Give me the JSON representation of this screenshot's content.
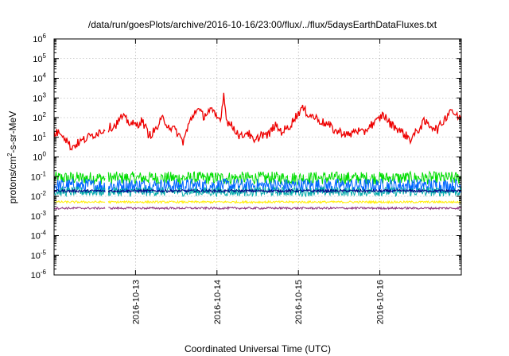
{
  "chart_data": {
    "type": "line",
    "title": "/data/run/goesPlots/archive/2016-10-16/23:00/flux/../flux/5daysEarthDataFluxes.txt",
    "xlabel": "Coordinated Universal Time (UTC)",
    "ylabel": {
      "base": "protons/cm",
      "sup": "2",
      "rest": "-s-sr-MeV"
    },
    "yscale": "log",
    "ylim_exponents": [
      -6,
      6
    ],
    "y_tick_labels": [
      {
        "base": "10",
        "exp": "6",
        "value_exp": 6
      },
      {
        "base": "10",
        "exp": "5",
        "value_exp": 5
      },
      {
        "base": "10",
        "exp": "4",
        "value_exp": 4
      },
      {
        "base": "10",
        "exp": "3",
        "value_exp": 3
      },
      {
        "base": "10",
        "exp": "2",
        "value_exp": 2
      },
      {
        "base": "10",
        "exp": "1",
        "value_exp": 1
      },
      {
        "base": "10",
        "exp": "0",
        "value_exp": 0
      },
      {
        "base": "10",
        "exp": "-1",
        "value_exp": -1
      },
      {
        "base": "10",
        "exp": "-2",
        "value_exp": -2
      },
      {
        "base": "10",
        "exp": "-3",
        "value_exp": -3
      },
      {
        "base": "10",
        "exp": "-4",
        "value_exp": -4
      },
      {
        "base": "10",
        "exp": "-5",
        "value_exp": -5
      },
      {
        "base": "10",
        "exp": "-6",
        "value_exp": -6
      }
    ],
    "x_range_days": [
      "2016-10-12 00:00",
      "2016-10-17 00:00"
    ],
    "x_ticks": [
      {
        "label": "2016-10-13",
        "date": "2016-10-13"
      },
      {
        "label": "2016-10-14",
        "date": "2016-10-14"
      },
      {
        "label": "2016-10-15",
        "date": "2016-10-15"
      },
      {
        "label": "2016-10-16",
        "date": "2016-10-16"
      }
    ],
    "grid": true,
    "legend": "none",
    "data_gap": [
      "2016-10-12 15:00",
      "2016-10-12 16:00"
    ],
    "series": [
      {
        "color": "#ee0000",
        "points": [
          [
            "2016-10-12 00:00",
            15
          ],
          [
            "2016-10-12 02:00",
            20
          ],
          [
            "2016-10-12 04:00",
            6
          ],
          [
            "2016-10-12 05:00",
            3
          ],
          [
            "2016-10-12 07:00",
            5
          ],
          [
            "2016-10-12 09:00",
            8
          ],
          [
            "2016-10-12 11:00",
            12
          ],
          [
            "2016-10-12 13:00",
            18
          ],
          [
            "2016-10-12 15:00",
            25
          ],
          [
            "2016-10-12 16:00",
            30
          ],
          [
            "2016-10-12 18:00",
            40
          ],
          [
            "2016-10-12 20:00",
            110
          ],
          [
            "2016-10-12 22:00",
            60
          ],
          [
            "2016-10-13 00:00",
            40
          ],
          [
            "2016-10-13 02:00",
            70
          ],
          [
            "2016-10-13 04:00",
            12
          ],
          [
            "2016-10-13 06:00",
            25
          ],
          [
            "2016-10-13 08:00",
            90
          ],
          [
            "2016-10-13 10:00",
            35
          ],
          [
            "2016-10-13 12:00",
            20
          ],
          [
            "2016-10-13 14:00",
            6
          ],
          [
            "2016-10-13 16:00",
            60
          ],
          [
            "2016-10-13 18:00",
            300
          ],
          [
            "2016-10-13 20:00",
            120
          ],
          [
            "2016-10-13 22:00",
            250
          ],
          [
            "2016-10-14 00:00",
            100
          ],
          [
            "2016-10-14 01:00",
            80
          ],
          [
            "2016-10-14 02:00",
            1500
          ],
          [
            "2016-10-14 03:00",
            60
          ],
          [
            "2016-10-14 05:00",
            30
          ],
          [
            "2016-10-14 07:00",
            10
          ],
          [
            "2016-10-14 09:00",
            20
          ],
          [
            "2016-10-14 11:00",
            5
          ],
          [
            "2016-10-14 13:00",
            15
          ],
          [
            "2016-10-14 15:00",
            12
          ],
          [
            "2016-10-14 17:00",
            40
          ],
          [
            "2016-10-14 19:00",
            20
          ],
          [
            "2016-10-14 21:00",
            30
          ],
          [
            "2016-10-14 23:00",
            100
          ],
          [
            "2016-10-15 01:00",
            300
          ],
          [
            "2016-10-15 03:00",
            150
          ],
          [
            "2016-10-15 05:00",
            100
          ],
          [
            "2016-10-15 07:00",
            60
          ],
          [
            "2016-10-15 09:00",
            40
          ],
          [
            "2016-10-15 11:00",
            20
          ],
          [
            "2016-10-15 13:00",
            18
          ],
          [
            "2016-10-15 15:00",
            12
          ],
          [
            "2016-10-15 17:00",
            25
          ],
          [
            "2016-10-15 19:00",
            15
          ],
          [
            "2016-10-15 21:00",
            40
          ],
          [
            "2016-10-15 23:00",
            60
          ],
          [
            "2016-10-16 01:00",
            150
          ],
          [
            "2016-10-16 03:00",
            50
          ],
          [
            "2016-10-16 05:00",
            30
          ],
          [
            "2016-10-16 07:00",
            15
          ],
          [
            "2016-10-16 09:00",
            8
          ],
          [
            "2016-10-16 11:00",
            20
          ],
          [
            "2016-10-16 13:00",
            60
          ],
          [
            "2016-10-16 15:00",
            40
          ],
          [
            "2016-10-16 17:00",
            25
          ],
          [
            "2016-10-16 19:00",
            80
          ],
          [
            "2016-10-16 21:00",
            300
          ],
          [
            "2016-10-16 22:00",
            150
          ],
          [
            "2016-10-16 23:00",
            100
          ],
          [
            "2016-10-17 00:00",
            120
          ]
        ]
      },
      {
        "color": "#00dd00",
        "band": [
          0.04,
          0.18
        ]
      },
      {
        "color": "#0066ff",
        "band": [
          0.015,
          0.08
        ]
      },
      {
        "color": "#00aaaa",
        "band": [
          0.01,
          0.03
        ]
      },
      {
        "color": "#000080",
        "band": [
          0.016,
          0.022
        ]
      },
      {
        "color": "#ffee00",
        "band": [
          0.0045,
          0.0058
        ]
      },
      {
        "color": "#8b2f7e",
        "band": [
          0.0022,
          0.0028
        ]
      }
    ]
  }
}
